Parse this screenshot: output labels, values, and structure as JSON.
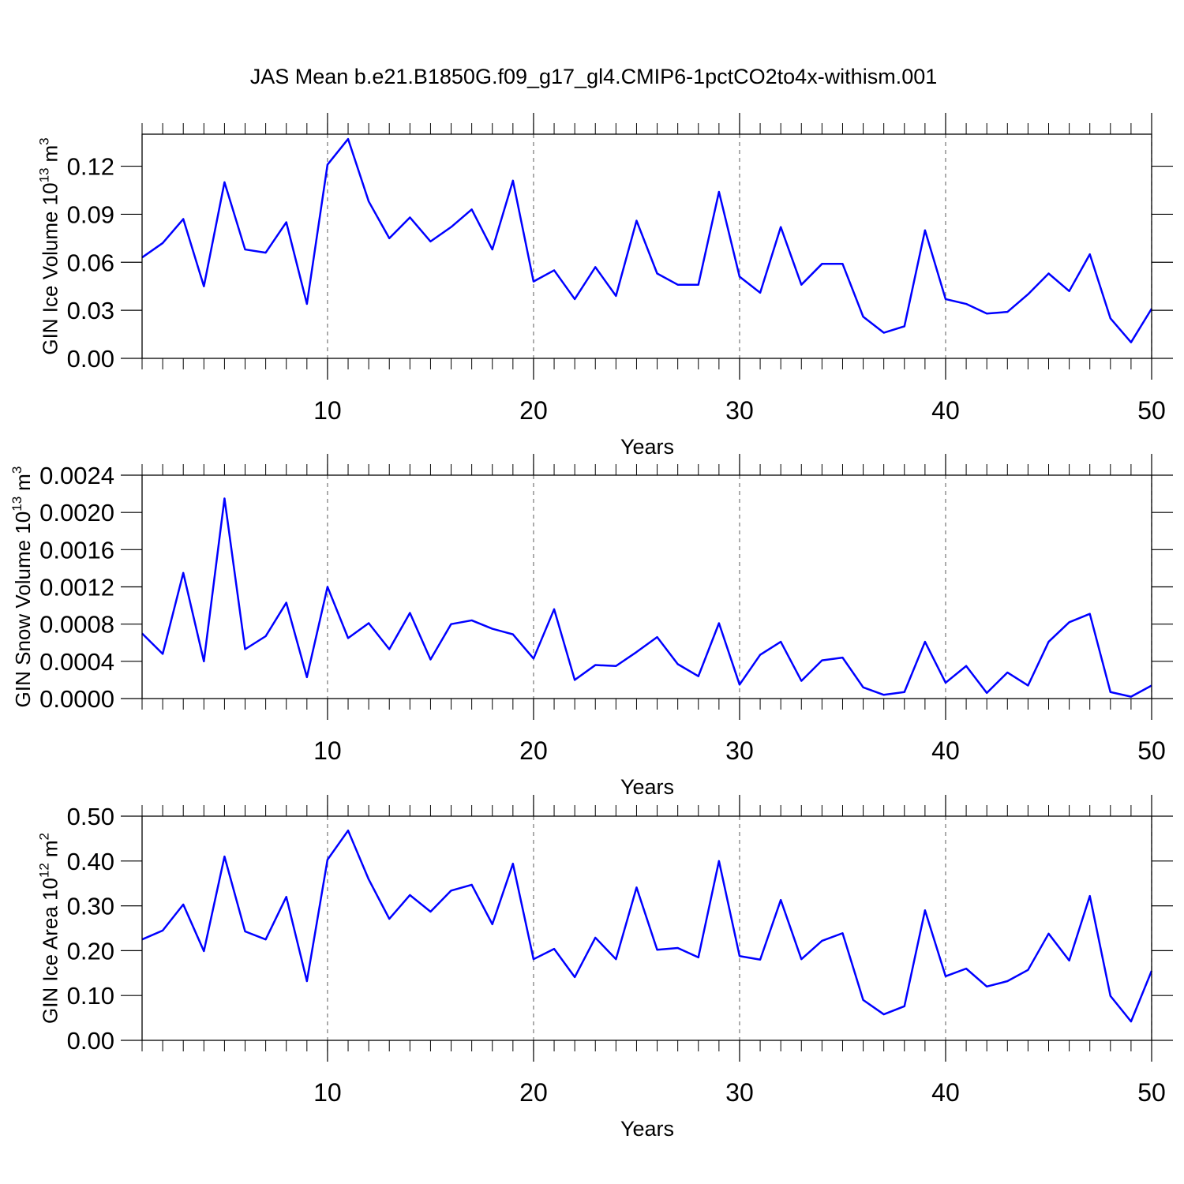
{
  "chart_data": [
    {
      "type": "line",
      "title": "JAS Mean b.e21.B1850G.f09_g17_gl4.CMIP6-1pctCO2to4x-withism.001",
      "ylabel": [
        "GIN Ice Volume 10",
        "13",
        "m",
        "3"
      ],
      "xlabel": "Years",
      "color": "#0000ff",
      "x": [
        1,
        2,
        3,
        4,
        5,
        6,
        7,
        8,
        9,
        10,
        11,
        12,
        13,
        14,
        15,
        16,
        17,
        18,
        19,
        20,
        21,
        22,
        23,
        24,
        25,
        26,
        27,
        28,
        29,
        30,
        31,
        32,
        33,
        34,
        35,
        36,
        37,
        38,
        39,
        40,
        41,
        42,
        43,
        44,
        45,
        46,
        47,
        48,
        49,
        50
      ],
      "values": [
        0.063,
        0.072,
        0.087,
        0.045,
        0.11,
        0.068,
        0.066,
        0.085,
        0.034,
        0.121,
        0.137,
        0.098,
        0.075,
        0.088,
        0.073,
        0.082,
        0.093,
        0.068,
        0.111,
        0.048,
        0.055,
        0.037,
        0.057,
        0.039,
        0.086,
        0.053,
        0.046,
        0.046,
        0.104,
        0.051,
        0.041,
        0.082,
        0.046,
        0.059,
        0.059,
        0.026,
        0.016,
        0.02,
        0.08,
        0.037,
        0.034,
        0.028,
        0.029,
        0.04,
        0.053,
        0.042,
        0.065,
        0.025,
        0.01,
        0.031
      ],
      "xlim": [
        1,
        50
      ],
      "xticks": [
        10,
        20,
        30,
        40,
        50
      ],
      "xgrid": true,
      "ylim": [
        0,
        0.14
      ],
      "yticks": [
        {
          "value": 0,
          "label": "0.00"
        },
        0.03,
        0.06,
        0.09,
        0.12
      ]
    },
    {
      "type": "line",
      "ylabel": [
        "GIN Snow Volume 10",
        "13",
        "m",
        "3"
      ],
      "xlabel": "Years",
      "color": "#0000ff",
      "x": [
        1,
        2,
        3,
        4,
        5,
        6,
        7,
        8,
        9,
        10,
        11,
        12,
        13,
        14,
        15,
        16,
        17,
        18,
        19,
        20,
        21,
        22,
        23,
        24,
        25,
        26,
        27,
        28,
        29,
        30,
        31,
        32,
        33,
        34,
        35,
        36,
        37,
        38,
        39,
        40,
        41,
        42,
        43,
        44,
        45,
        46,
        47,
        48,
        49,
        50
      ],
      "values": [
        0.0007,
        0.00048,
        0.00135,
        0.0004,
        0.00215,
        0.00053,
        0.00067,
        0.00103,
        0.00023,
        0.0012,
        0.00065,
        0.00081,
        0.00053,
        0.00092,
        0.00042,
        0.0008,
        0.00084,
        0.00075,
        0.00069,
        0.00043,
        0.00096,
        0.0002,
        0.00036,
        0.00035,
        0.0005,
        0.00066,
        0.00037,
        0.00024,
        0.00081,
        0.00015,
        0.00047,
        0.00061,
        0.00019,
        0.00041,
        0.00044,
        0.00012,
        4e-05,
        7e-05,
        0.00061,
        0.00017,
        0.00035,
        6e-05,
        0.00028,
        0.00014,
        0.00061,
        0.00082,
        0.00091,
        7e-05,
        2e-05,
        0.00014
      ],
      "xlim": [
        1,
        50
      ],
      "xticks": [
        10,
        20,
        30,
        40,
        50
      ],
      "xgrid": true,
      "ylim": [
        0,
        0.0024
      ],
      "yticks": [
        {
          "value": 0,
          "label": "0.0000"
        },
        0.0004,
        0.0008,
        0.0012,
        0.0016,
        {
          "value": 0.002,
          "label": "0.0020"
        },
        0.0024
      ]
    },
    {
      "type": "line",
      "ylabel": [
        "GIN Ice Area 10",
        "12",
        "m",
        "2"
      ],
      "xlabel": "Years",
      "color": "#0000ff",
      "x": [
        1,
        2,
        3,
        4,
        5,
        6,
        7,
        8,
        9,
        10,
        11,
        12,
        13,
        14,
        15,
        16,
        17,
        18,
        19,
        20,
        21,
        22,
        23,
        24,
        25,
        26,
        27,
        28,
        29,
        30,
        31,
        32,
        33,
        34,
        35,
        36,
        37,
        38,
        39,
        40,
        41,
        42,
        43,
        44,
        45,
        46,
        47,
        48,
        49,
        50
      ],
      "values": [
        0.225,
        0.245,
        0.303,
        0.199,
        0.41,
        0.243,
        0.225,
        0.32,
        0.132,
        0.403,
        0.468,
        0.359,
        0.271,
        0.324,
        0.287,
        0.334,
        0.347,
        0.259,
        0.394,
        0.181,
        0.204,
        0.141,
        0.229,
        0.181,
        0.341,
        0.202,
        0.206,
        0.185,
        0.4,
        0.188,
        0.18,
        0.313,
        0.181,
        0.222,
        0.239,
        0.09,
        0.058,
        0.076,
        0.29,
        0.143,
        0.16,
        0.12,
        0.132,
        0.157,
        0.238,
        0.178,
        0.322,
        0.099,
        0.042,
        0.155
      ],
      "xlim": [
        1,
        50
      ],
      "xticks": [
        10,
        20,
        30,
        40,
        50
      ],
      "xgrid": true,
      "ylim": [
        0,
        0.5
      ],
      "yticks": [
        {
          "value": 0,
          "label": "0.00"
        },
        {
          "value": 0.1,
          "label": "0.10"
        },
        {
          "value": 0.2,
          "label": "0.20"
        },
        {
          "value": 0.3,
          "label": "0.30"
        },
        {
          "value": 0.4,
          "label": "0.40"
        },
        {
          "value": 0.5,
          "label": "0.50"
        }
      ]
    }
  ]
}
